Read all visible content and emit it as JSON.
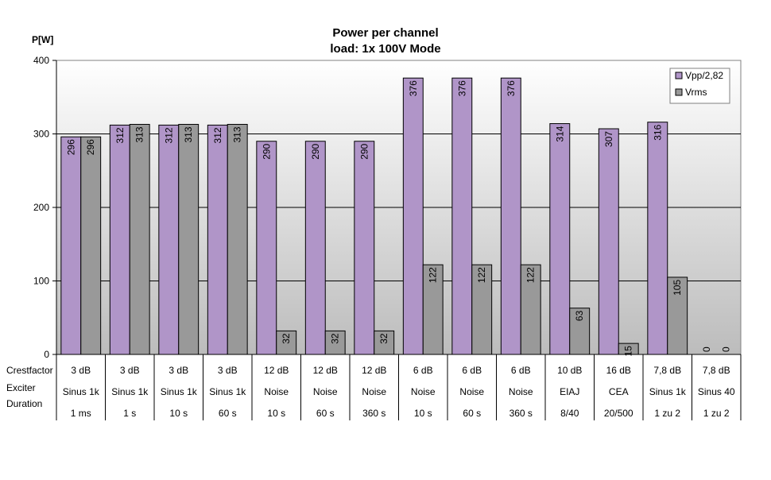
{
  "chart_data": {
    "type": "bar",
    "title": "Power per channel",
    "subtitle": "load:  1x 100V Mode",
    "ylabel": "P[W]",
    "xlabel": "",
    "ylim": [
      0,
      400
    ],
    "yticks": [
      0,
      100,
      200,
      300,
      400
    ],
    "grid": true,
    "legend_position": "top-right",
    "categories": [
      "3 dB Sinus 1k 1 ms",
      "3 dB Sinus 1k 1 s",
      "3 dB Sinus 1k 10 s",
      "3 dB Sinus 1k 60 s",
      "12 dB Noise 10 s",
      "12 dB Noise 60 s",
      "12 dB Noise 360 s",
      "6 dB Noise 10 s",
      "6 dB Noise 60 s",
      "6 dB Noise 360 s",
      "10 dB EIAJ 8/40",
      "16 dB CEA 20/500",
      "7,8 dB Sinus 1k 1 zu 2",
      "7,8 dB Sinus 40 1 zu 2"
    ],
    "series": [
      {
        "name": "Vpp/2,82",
        "color": "#b095c8",
        "values": [
          296,
          312,
          312,
          312,
          290,
          290,
          290,
          376,
          376,
          376,
          314,
          307,
          316,
          0
        ]
      },
      {
        "name": "Vrms",
        "color": "#999999",
        "values": [
          296,
          313,
          313,
          313,
          32,
          32,
          32,
          122,
          122,
          122,
          63,
          15,
          105,
          0
        ]
      }
    ],
    "data_labels": [
      [
        "296",
        "312",
        "312",
        "312",
        "290",
        "290",
        "290",
        "376",
        "376",
        "376",
        "314",
        "307",
        "316",
        "0"
      ],
      [
        "296",
        "313",
        "313",
        "313",
        "32",
        "32",
        "32",
        "122",
        "122",
        "122",
        "63",
        "15",
        "105",
        "0"
      ]
    ],
    "table": {
      "row_labels": [
        "Crestfactor",
        "Exciter",
        "Duration"
      ],
      "rows": [
        [
          "3 dB",
          "3 dB",
          "3 dB",
          "3 dB",
          "12 dB",
          "12 dB",
          "12 dB",
          "6 dB",
          "6 dB",
          "6 dB",
          "10 dB",
          "16 dB",
          "7,8 dB",
          "7,8 dB"
        ],
        [
          "Sinus 1k",
          "Sinus 1k",
          "Sinus 1k",
          "Sinus 1k",
          "Noise",
          "Noise",
          "Noise",
          "Noise",
          "Noise",
          "Noise",
          "EIAJ",
          "CEA",
          "Sinus 1k",
          "Sinus 40"
        ],
        [
          "1 ms",
          "1 s",
          "10 s",
          "60 s",
          "10 s",
          "60 s",
          "360 s",
          "10 s",
          "60 s",
          "360 s",
          "8/40",
          "20/500",
          "1 zu 2",
          "1 zu 2"
        ]
      ]
    }
  }
}
